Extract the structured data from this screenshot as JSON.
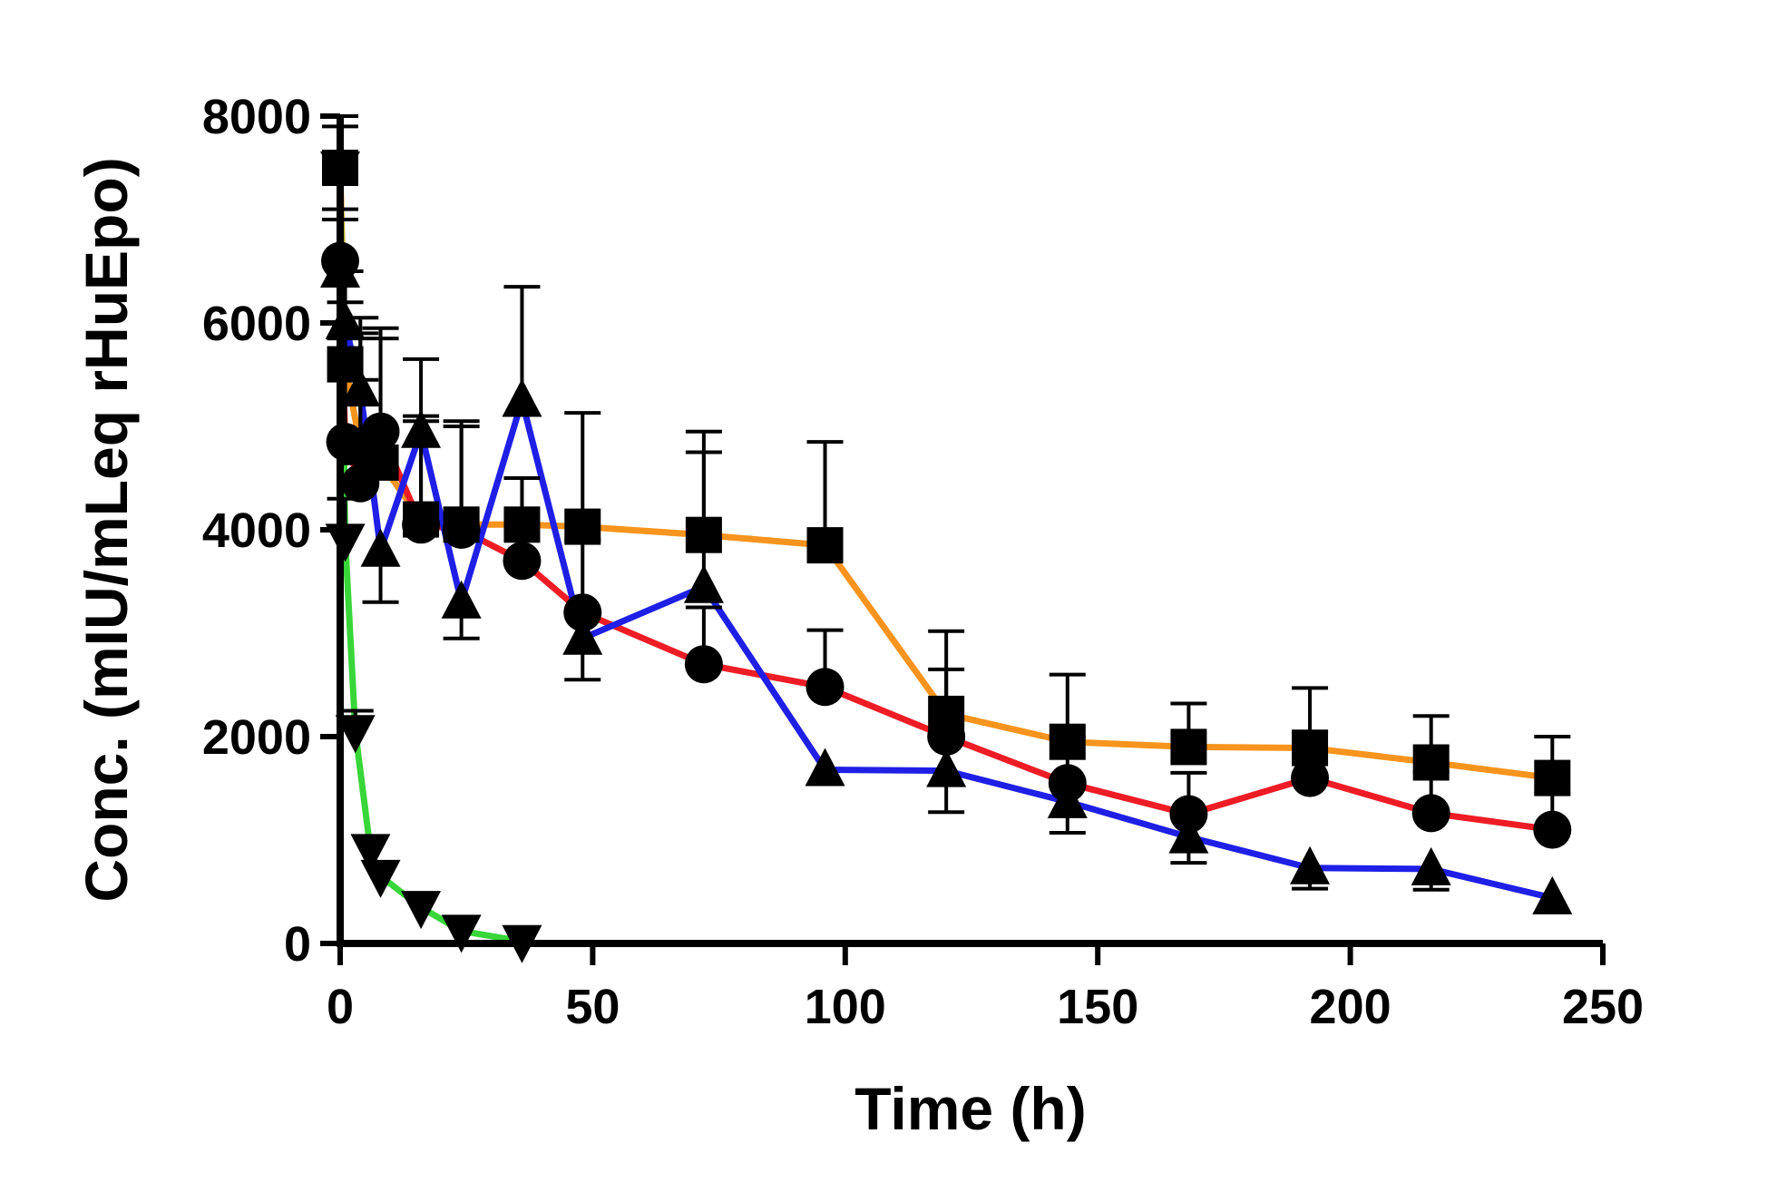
{
  "chart_data": {
    "type": "line",
    "xlabel": "Time (h)",
    "ylabel": "Conc. (mIU/mLeq rHuEpo)",
    "xlim": [
      0,
      250
    ],
    "ylim": [
      0,
      8000
    ],
    "xticks": [
      0,
      50,
      100,
      150,
      200,
      250
    ],
    "yticks": [
      0,
      2000,
      4000,
      6000,
      8000
    ],
    "grid": false,
    "legend": "none",
    "series": [
      {
        "marker": "square",
        "color": "#f7941d",
        "x": [
          0,
          1,
          4,
          8,
          16,
          24,
          36,
          48,
          72,
          96,
          120,
          144,
          168,
          192,
          216,
          240
        ],
        "y": [
          7500,
          5600,
          4800,
          4650,
          4100,
          4050,
          4050,
          4030,
          3950,
          3850,
          2220,
          1950,
          1900,
          1890,
          1750,
          1600
        ],
        "err": [
          400,
          600,
          1100,
          1200,
          1000,
          950,
          0,
          1100,
          1000,
          1000,
          800,
          650,
          420,
          580,
          450,
          400
        ]
      },
      {
        "marker": "circle",
        "color": "#ee1c25",
        "x": [
          0,
          1,
          4,
          8,
          16,
          24,
          36,
          48,
          72,
          96,
          120,
          144,
          168,
          192,
          216,
          240
        ],
        "y": [
          6600,
          4850,
          4450,
          4950,
          4050,
          4000,
          3700,
          3200,
          2700,
          2480,
          2000,
          1550,
          1250,
          1600,
          1260,
          1100
        ],
        "err": [
          500,
          1000,
          1000,
          1000,
          1000,
          1050,
          800,
          700,
          550,
          550,
          650,
          450,
          400,
          450,
          400,
          350
        ]
      },
      {
        "marker": "triangle-up",
        "color": "#1f1fe6",
        "x": [
          0,
          1,
          4,
          8,
          16,
          24,
          36,
          48,
          72,
          96,
          120,
          144,
          168,
          192,
          216,
          240
        ],
        "y": [
          6500,
          6000,
          5350,
          3800,
          4950,
          3300,
          5250,
          2950,
          3450,
          1680,
          1670,
          1370,
          1030,
          730,
          720,
          440
        ],
        "err": [
          500,
          500,
          700,
          500,
          700,
          350,
          1100,
          400,
          1300,
          0,
          400,
          300,
          250,
          200,
          200,
          0
        ],
        "down_only": [
          false,
          false,
          false,
          true,
          false,
          true,
          false,
          true,
          false,
          false,
          true,
          true,
          true,
          true,
          true,
          false
        ]
      },
      {
        "marker": "triangle-down",
        "color": "#39d639",
        "x": [
          0,
          1,
          3,
          6,
          8,
          16,
          24,
          36
        ],
        "y": [
          7500,
          3900,
          2050,
          900,
          650,
          350,
          120,
          20
        ],
        "err": [
          500,
          400,
          200,
          0,
          0,
          0,
          0,
          0
        ]
      }
    ]
  }
}
